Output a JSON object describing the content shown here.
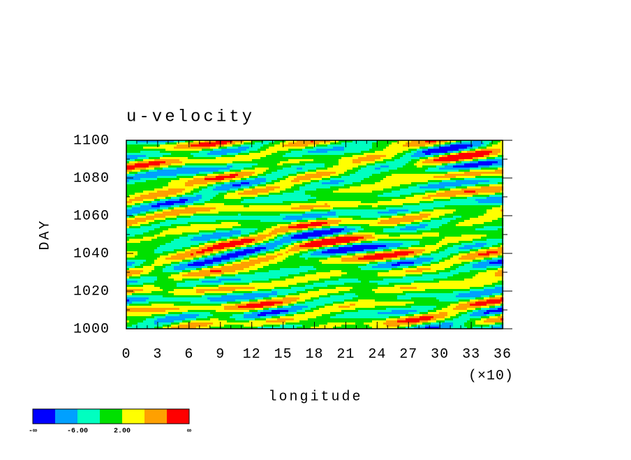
{
  "chart_data": {
    "type": "contour",
    "title": "u-velocity",
    "x_label": "longitude",
    "y_label": "DAY",
    "x_multiplier": "(×10)",
    "xlim": [
      0,
      36
    ],
    "xticks": [
      0,
      3,
      6,
      9,
      12,
      15,
      18,
      21,
      24,
      27,
      30,
      33,
      36
    ],
    "ylim": [
      1000,
      1100
    ],
    "yticks": [
      1000,
      1020,
      1040,
      1060,
      1080,
      1100
    ],
    "colorbar": {
      "colors": [
        "#0000ff",
        "#00a0ff",
        "#00ffc0",
        "#00e000",
        "#ffff00",
        "#ffa000",
        "#ff0000"
      ],
      "bounds": [
        "-∞",
        null,
        {
          "value": -6,
          "label": "-6.00"
        },
        null,
        {
          "value": 2,
          "label": "2.00"
        },
        null,
        null,
        "∞"
      ]
    }
  }
}
